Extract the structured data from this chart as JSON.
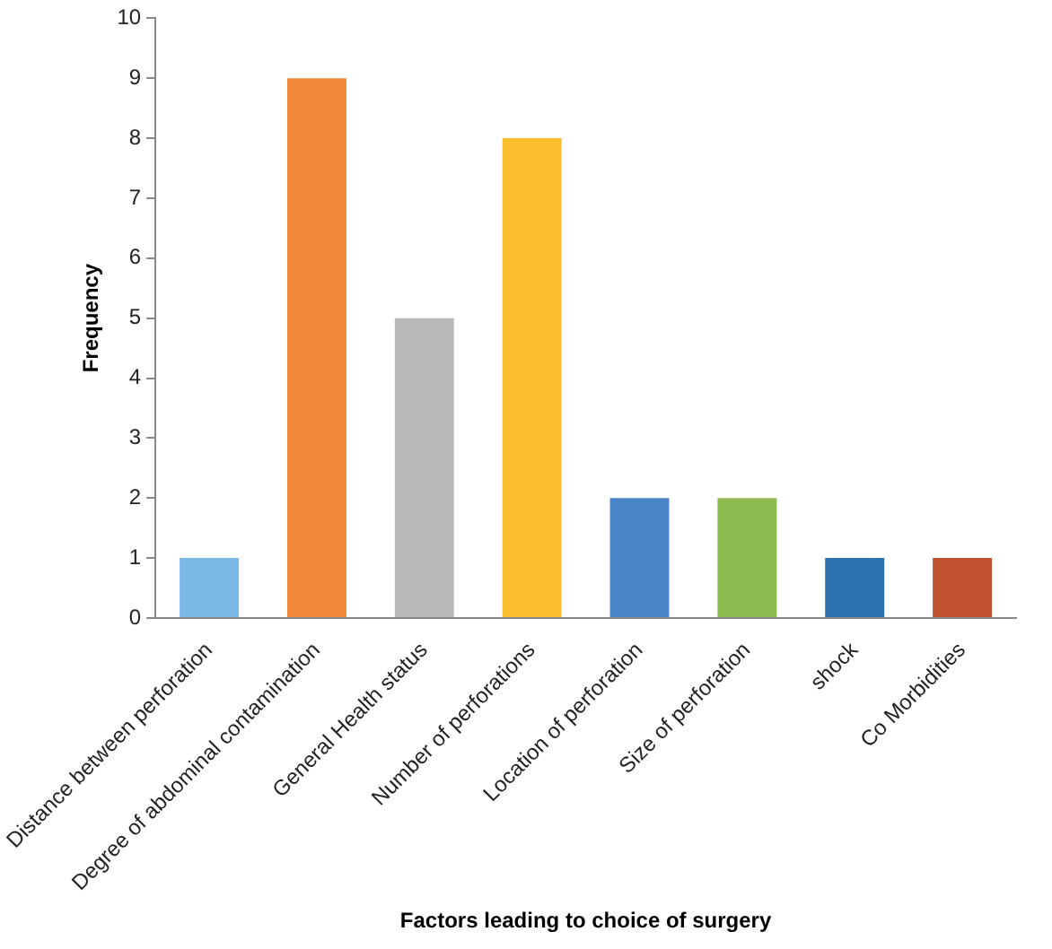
{
  "chart_data": {
    "type": "bar",
    "xlabel": "Factors leading to choice of surgery",
    "ylabel": "Frequency",
    "categories": [
      "Distance between perforation",
      "Degree of abdominal contamination",
      "General Health status",
      "Number of perforations",
      "Location of perforation",
      "Size of perforation",
      "shock",
      "Co Morbidities"
    ],
    "values": [
      1,
      9,
      5,
      8,
      2,
      2,
      1,
      1
    ],
    "colors": [
      "#7ab8e6",
      "#f0883a",
      "#b9b9b9",
      "#fbbe2c",
      "#4a86c8",
      "#8cbb4f",
      "#2a71ae",
      "#c0532f"
    ],
    "ylim": [
      0,
      10
    ],
    "yticks": [
      0,
      1,
      2,
      3,
      4,
      5,
      6,
      7,
      8,
      9,
      10
    ],
    "grid": false,
    "legend": false
  }
}
